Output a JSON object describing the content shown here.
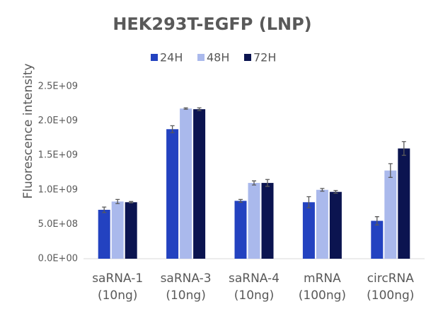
{
  "chart_data": {
    "type": "bar",
    "title": "HEK293T-EGFP (LNP)",
    "y_label": "Fluorescence intensity",
    "categories": [
      [
        "saRNA-1",
        "(10ng)"
      ],
      [
        "saRNA-3",
        "(10ng)"
      ],
      [
        "saRNA-4",
        "(10ng)"
      ],
      [
        "mRNA",
        "(100ng)"
      ],
      [
        "circRNA",
        "(100ng)"
      ]
    ],
    "series": [
      {
        "name": "24H",
        "color": "#2342c0",
        "values": [
          710000000,
          1880000000,
          840000000,
          820000000,
          550000000
        ],
        "errors": [
          40000000,
          50000000,
          20000000,
          80000000,
          60000000
        ]
      },
      {
        "name": "48H",
        "color": "#aab9ec",
        "values": [
          830000000,
          2180000000,
          1100000000,
          1000000000,
          1280000000
        ],
        "errors": [
          30000000,
          10000000,
          30000000,
          20000000,
          100000000
        ]
      },
      {
        "name": "72H",
        "color": "#0b1450",
        "values": [
          820000000,
          2170000000,
          1100000000,
          970000000,
          1600000000
        ],
        "errors": [
          10000000,
          20000000,
          50000000,
          20000000,
          100000000
        ]
      }
    ],
    "ylim": [
      0,
      2500000000
    ],
    "yticks": [
      {
        "value": 0,
        "label": "0.0E+00"
      },
      {
        "value": 500000000,
        "label": "5.0E+08"
      },
      {
        "value": 1000000000,
        "label": "1.0E+09"
      },
      {
        "value": 1500000000,
        "label": "1.5E+09"
      },
      {
        "value": 2000000000,
        "label": "2.0E+09"
      },
      {
        "value": 2500000000,
        "label": "2.5E+09"
      }
    ],
    "grid": false,
    "legend": "top"
  }
}
